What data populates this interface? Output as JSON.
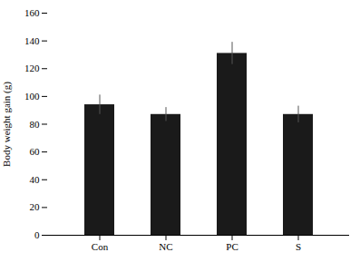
{
  "chart_data": {
    "type": "bar",
    "categories": [
      "Con",
      "NC",
      "PC",
      "S"
    ],
    "values": [
      94,
      87,
      131,
      87
    ],
    "errors": [
      7,
      5,
      8,
      6
    ],
    "color": "#1a1a1a",
    "ylabel": "Body weight gain (g)",
    "ylim": [
      0,
      160
    ],
    "yticks": [
      0,
      20,
      40,
      60,
      80,
      100,
      120,
      140,
      160
    ],
    "grid": false
  }
}
